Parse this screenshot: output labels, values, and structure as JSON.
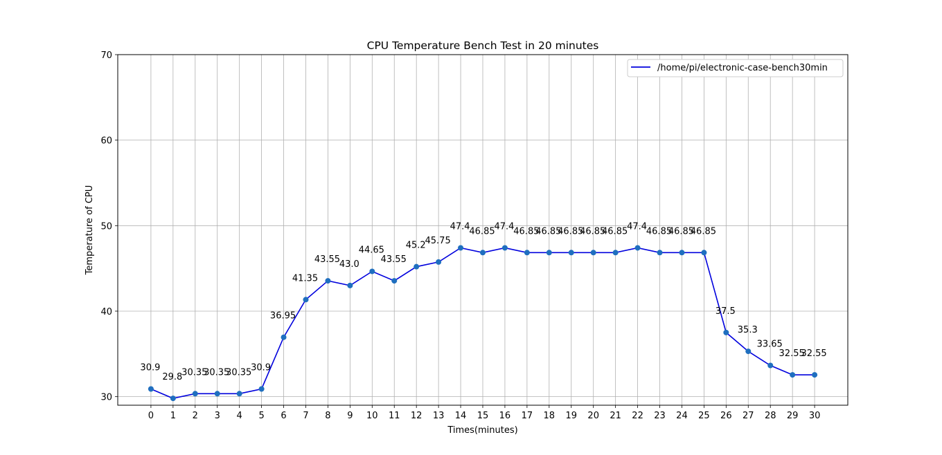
{
  "chart_data": {
    "type": "line",
    "title": "CPU Temperature Bench Test in 20 minutes",
    "xlabel": "Times(minutes)",
    "ylabel": "Temperature of CPU",
    "x": [
      0,
      1,
      2,
      3,
      4,
      5,
      6,
      7,
      8,
      9,
      10,
      11,
      12,
      13,
      14,
      15,
      16,
      17,
      18,
      19,
      20,
      21,
      22,
      23,
      24,
      25,
      26,
      27,
      28,
      29,
      30
    ],
    "series": [
      {
        "name": "/home/pi/electronic-case-bench30min",
        "color": "#0000dd",
        "marker_color": "#1f6fbf",
        "values": [
          30.9,
          29.8,
          30.35,
          30.35,
          30.35,
          30.9,
          36.95,
          41.35,
          43.55,
          43.0,
          44.65,
          43.55,
          45.2,
          45.75,
          47.4,
          46.85,
          47.4,
          46.85,
          46.85,
          46.85,
          46.85,
          46.85,
          47.4,
          46.85,
          46.85,
          46.85,
          37.5,
          35.3,
          33.65,
          32.55,
          32.55
        ],
        "labels": [
          "30.9",
          "29.8",
          "30.35",
          "30.35",
          "30.35",
          "30.9",
          "36.95",
          "41.35",
          "43.55",
          "43.0",
          "44.65",
          "43.55",
          "45.2",
          "45.75",
          "47.4",
          "46.85",
          "47.4",
          "46.85",
          "46.85",
          "46.85",
          "46.85",
          "46.85",
          "47.4",
          "46.85",
          "46.85",
          "46.85",
          "37.5",
          "35.3",
          "33.65",
          "32.55",
          "32.55"
        ]
      }
    ],
    "xlim": [
      -1.5,
      31.5
    ],
    "ylim": [
      29.0,
      70.0
    ],
    "xticks": [
      "0",
      "1",
      "2",
      "3",
      "4",
      "5",
      "6",
      "7",
      "8",
      "9",
      "10",
      "11",
      "12",
      "13",
      "14",
      "15",
      "16",
      "17",
      "18",
      "19",
      "20",
      "21",
      "22",
      "23",
      "24",
      "25",
      "26",
      "27",
      "28",
      "29",
      "30"
    ],
    "yticks": [
      30,
      40,
      50,
      60,
      70
    ],
    "grid": true,
    "legend_position": "upper right"
  }
}
